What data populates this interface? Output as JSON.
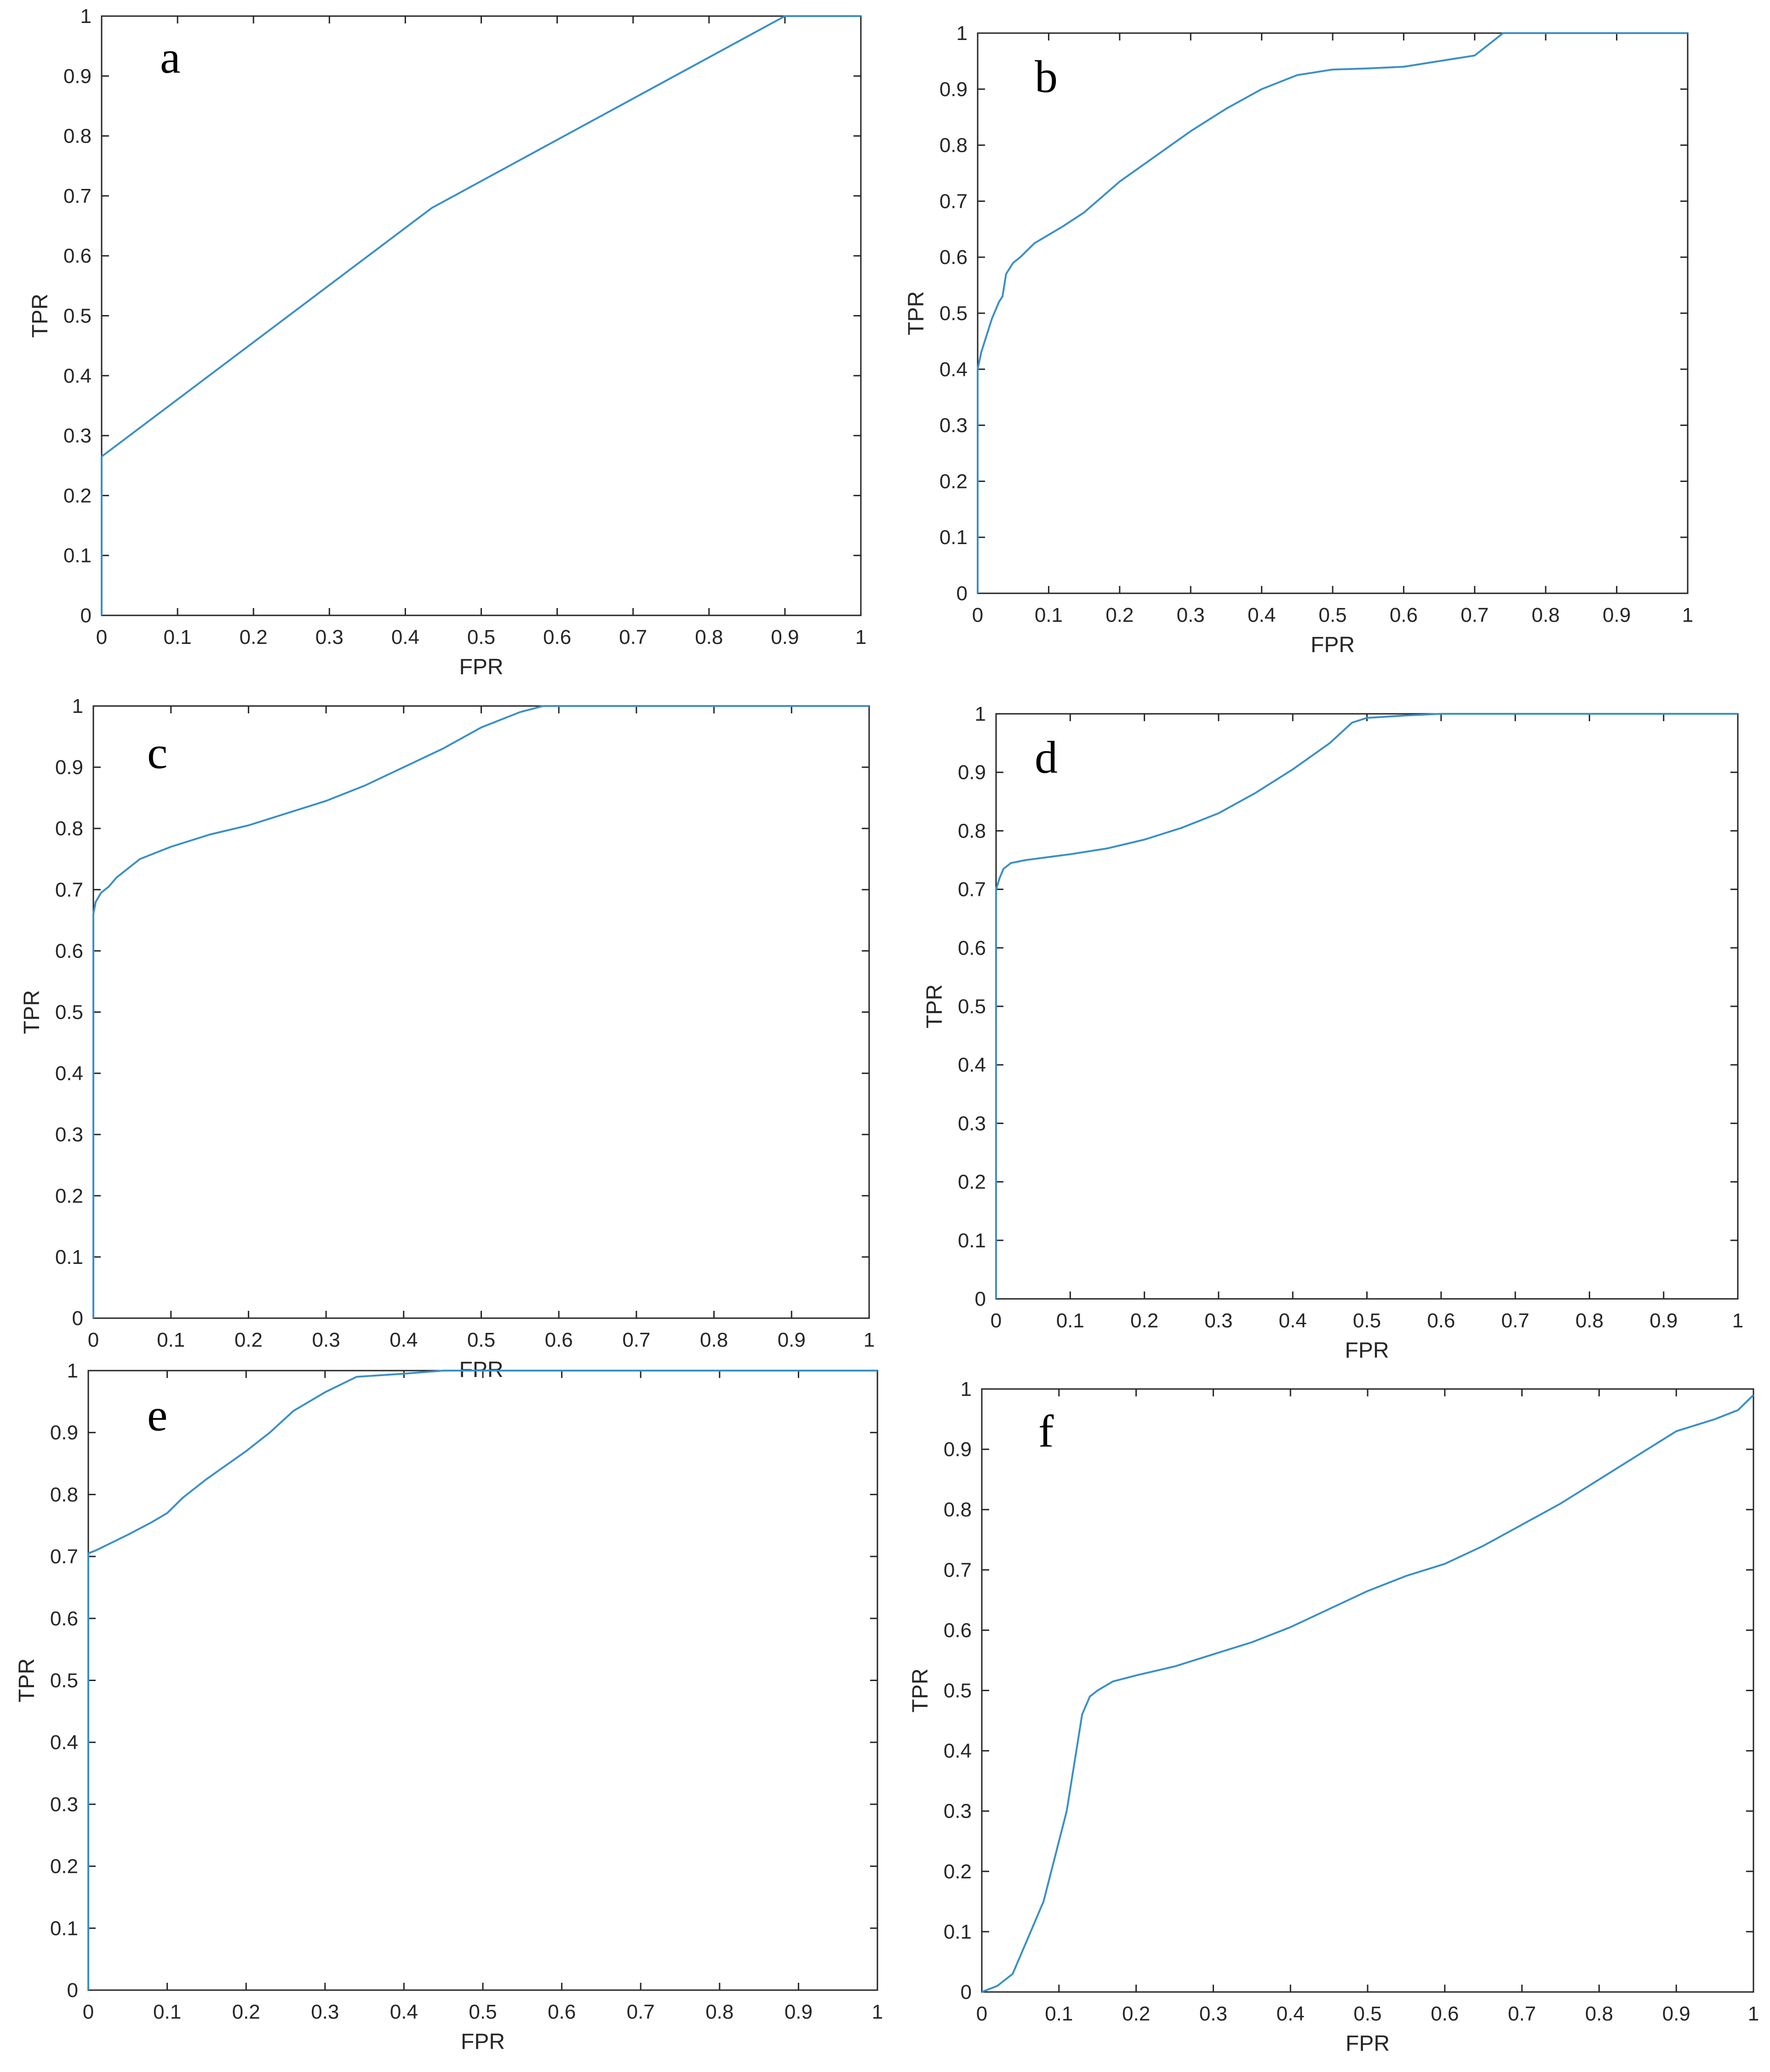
{
  "colors": {
    "curve": "#3a8fc7",
    "axes": "#262626",
    "background": "#ffffff"
  },
  "chart_data": [
    {
      "panel": "a",
      "type": "line",
      "xlabel": "FPR",
      "ylabel": "TPR",
      "xlim": [
        0,
        1
      ],
      "ylim": [
        0,
        1
      ],
      "xticks": [
        "0",
        "0.1",
        "0.2",
        "0.3",
        "0.4",
        "0.5",
        "0.6",
        "0.7",
        "0.8",
        "0.9",
        "1"
      ],
      "yticks": [
        "0",
        "0.1",
        "0.2",
        "0.3",
        "0.4",
        "0.5",
        "0.6",
        "0.7",
        "0.8",
        "0.9",
        "1"
      ],
      "grid": false,
      "x": [
        0,
        0,
        0.435,
        0.9,
        1
      ],
      "y": [
        0,
        0.265,
        0.68,
        1.0,
        1.0
      ]
    },
    {
      "panel": "b",
      "type": "line",
      "xlabel": "FPR",
      "ylabel": "TPR",
      "xlim": [
        0,
        1
      ],
      "ylim": [
        0,
        1
      ],
      "xticks": [
        "0",
        "0.1",
        "0.2",
        "0.3",
        "0.4",
        "0.5",
        "0.6",
        "0.7",
        "0.8",
        "0.9",
        "1"
      ],
      "yticks": [
        "0",
        "0.1",
        "0.2",
        "0.3",
        "0.4",
        "0.5",
        "0.6",
        "0.7",
        "0.8",
        "0.9",
        "1"
      ],
      "grid": false,
      "x": [
        0,
        0,
        0.005,
        0.01,
        0.02,
        0.03,
        0.035,
        0.04,
        0.05,
        0.06,
        0.08,
        0.1,
        0.12,
        0.15,
        0.2,
        0.25,
        0.3,
        0.35,
        0.4,
        0.45,
        0.5,
        0.55,
        0.6,
        0.65,
        0.7,
        0.72,
        0.74,
        0.8,
        0.9,
        1.0
      ],
      "y": [
        0,
        0.4,
        0.43,
        0.45,
        0.49,
        0.52,
        0.53,
        0.57,
        0.59,
        0.6,
        0.625,
        0.64,
        0.655,
        0.68,
        0.735,
        0.78,
        0.825,
        0.865,
        0.9,
        0.925,
        0.935,
        0.937,
        0.94,
        0.95,
        0.96,
        0.98,
        1.0,
        1.0,
        1.0,
        1.0
      ]
    },
    {
      "panel": "c",
      "type": "line",
      "xlabel": "FPR",
      "ylabel": "TPR",
      "xlim": [
        0,
        1
      ],
      "ylim": [
        0,
        1
      ],
      "xticks": [
        "0",
        "0.1",
        "0.2",
        "0.3",
        "0.4",
        "0.5",
        "0.6",
        "0.7",
        "0.8",
        "0.9",
        "1"
      ],
      "yticks": [
        "0",
        "0.1",
        "0.2",
        "0.3",
        "0.4",
        "0.5",
        "0.6",
        "0.7",
        "0.8",
        "0.9",
        "1"
      ],
      "grid": false,
      "x": [
        0,
        0,
        0.003,
        0.01,
        0.02,
        0.03,
        0.04,
        0.06,
        0.08,
        0.1,
        0.15,
        0.2,
        0.25,
        0.3,
        0.35,
        0.4,
        0.45,
        0.5,
        0.55,
        0.58,
        0.6,
        0.7,
        0.8,
        0.9,
        1.0
      ],
      "y": [
        0,
        0.66,
        0.68,
        0.695,
        0.705,
        0.72,
        0.73,
        0.75,
        0.76,
        0.77,
        0.79,
        0.805,
        0.825,
        0.845,
        0.87,
        0.9,
        0.93,
        0.965,
        0.99,
        1.0,
        1.0,
        1.0,
        1.0,
        1.0,
        1.0
      ]
    },
    {
      "panel": "d",
      "type": "line",
      "xlabel": "FPR",
      "ylabel": "TPR",
      "xlim": [
        0,
        1
      ],
      "ylim": [
        0,
        1
      ],
      "xticks": [
        "0",
        "0.1",
        "0.2",
        "0.3",
        "0.4",
        "0.5",
        "0.6",
        "0.7",
        "0.8",
        "0.9",
        "1"
      ],
      "yticks": [
        "0",
        "0.1",
        "0.2",
        "0.3",
        "0.4",
        "0.5",
        "0.6",
        "0.7",
        "0.8",
        "0.9",
        "1"
      ],
      "grid": false,
      "x": [
        0,
        0,
        0.005,
        0.01,
        0.02,
        0.04,
        0.07,
        0.1,
        0.15,
        0.2,
        0.25,
        0.3,
        0.35,
        0.4,
        0.45,
        0.48,
        0.5,
        0.55,
        0.6,
        0.7,
        0.8,
        0.9,
        1.0
      ],
      "y": [
        0,
        0.7,
        0.72,
        0.735,
        0.745,
        0.75,
        0.755,
        0.76,
        0.77,
        0.785,
        0.805,
        0.83,
        0.865,
        0.905,
        0.95,
        0.985,
        0.993,
        0.997,
        1.0,
        1.0,
        1.0,
        1.0,
        1.0
      ]
    },
    {
      "panel": "e",
      "type": "line",
      "xlabel": "FPR",
      "ylabel": "TPR",
      "xlim": [
        0,
        1
      ],
      "ylim": [
        0,
        1
      ],
      "xticks": [
        "0",
        "0.1",
        "0.2",
        "0.3",
        "0.4",
        "0.5",
        "0.6",
        "0.7",
        "0.8",
        "0.9",
        "1"
      ],
      "yticks": [
        "0",
        "0.1",
        "0.2",
        "0.3",
        "0.4",
        "0.5",
        "0.6",
        "0.7",
        "0.8",
        "0.9",
        "1"
      ],
      "grid": false,
      "x": [
        0,
        0,
        0.01,
        0.05,
        0.08,
        0.1,
        0.12,
        0.15,
        0.2,
        0.23,
        0.26,
        0.3,
        0.34,
        0.4,
        0.45,
        0.5,
        0.6,
        0.7,
        0.8,
        0.9,
        1.0
      ],
      "y": [
        0,
        0.705,
        0.71,
        0.735,
        0.755,
        0.77,
        0.795,
        0.825,
        0.87,
        0.9,
        0.935,
        0.965,
        0.99,
        0.995,
        1.0,
        1.0,
        1.0,
        1.0,
        1.0,
        1.0,
        1.0
      ]
    },
    {
      "panel": "f",
      "type": "line",
      "xlabel": "FPR",
      "ylabel": "TPR",
      "xlim": [
        0,
        1
      ],
      "ylim": [
        0,
        1
      ],
      "xticks": [
        "0",
        "0.1",
        "0.2",
        "0.3",
        "0.4",
        "0.5",
        "0.6",
        "0.7",
        "0.8",
        "0.9",
        "1"
      ],
      "yticks": [
        "0",
        "0.1",
        "0.2",
        "0.3",
        "0.4",
        "0.5",
        "0.6",
        "0.7",
        "0.8",
        "0.9",
        "1"
      ],
      "grid": false,
      "x": [
        0,
        0.01,
        0.02,
        0.04,
        0.06,
        0.08,
        0.1,
        0.11,
        0.12,
        0.13,
        0.14,
        0.15,
        0.17,
        0.2,
        0.25,
        0.3,
        0.35,
        0.4,
        0.45,
        0.5,
        0.55,
        0.6,
        0.65,
        0.7,
        0.75,
        0.8,
        0.85,
        0.9,
        0.95,
        0.98,
        1.0
      ],
      "y": [
        0,
        0.005,
        0.01,
        0.03,
        0.09,
        0.15,
        0.25,
        0.3,
        0.38,
        0.46,
        0.49,
        0.5,
        0.515,
        0.525,
        0.54,
        0.56,
        0.58,
        0.605,
        0.635,
        0.665,
        0.69,
        0.71,
        0.74,
        0.775,
        0.81,
        0.85,
        0.89,
        0.93,
        0.95,
        0.965,
        0.99
      ]
    }
  ]
}
